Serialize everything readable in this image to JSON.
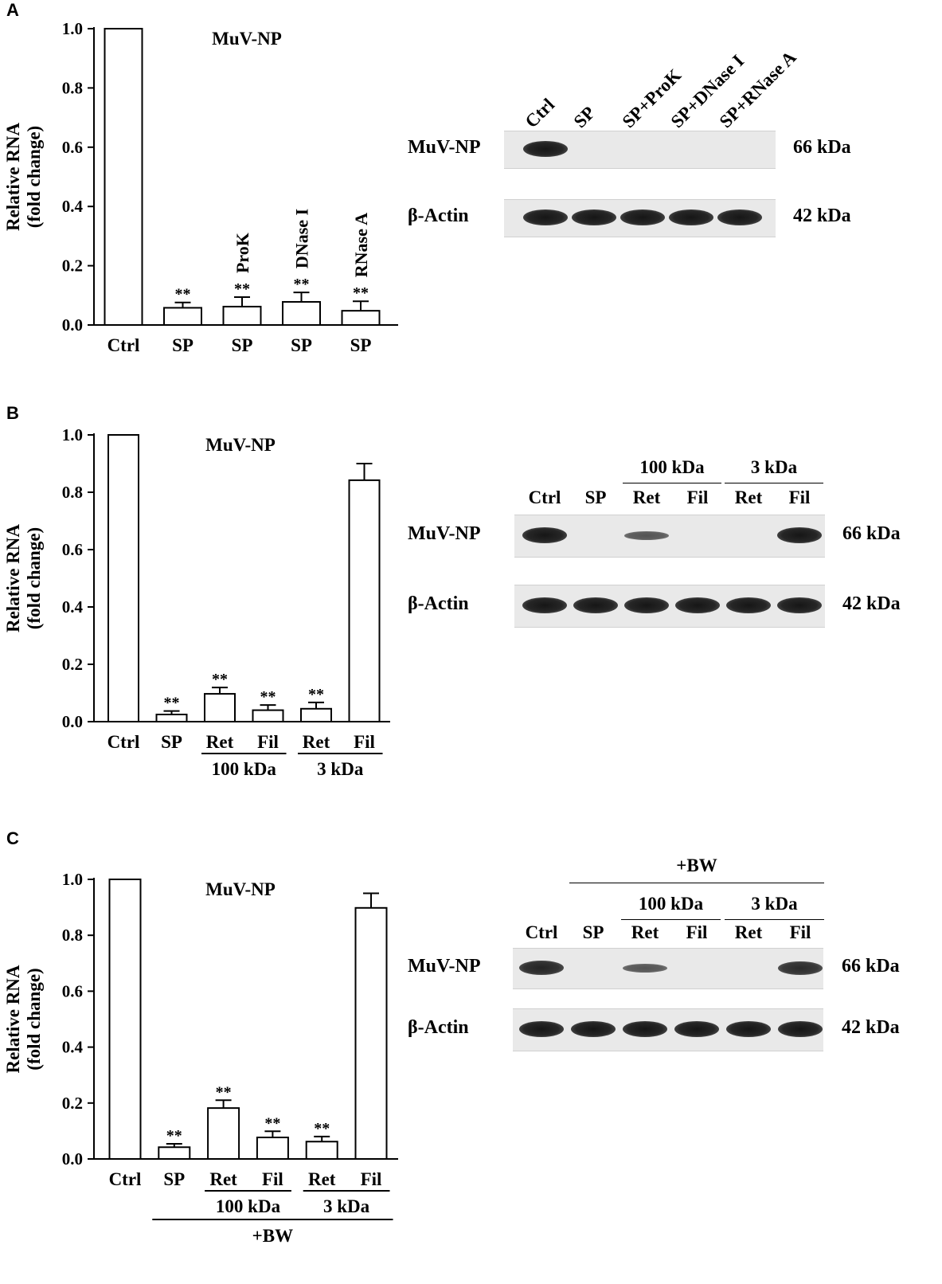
{
  "panels": [
    {
      "label": "A",
      "chart_data": {
        "type": "bar",
        "title": "MuV-NP",
        "ylabel_line1": "Relative RNA",
        "ylabel_line2": "(fold change)",
        "ylim": [
          0,
          1.0
        ],
        "yticks": [
          "0.0",
          "0.2",
          "0.4",
          "0.6",
          "0.8",
          "1.0"
        ],
        "categories": [
          "Ctrl",
          "SP",
          "SP",
          "SP",
          "SP"
        ],
        "bar_top_labels": [
          "",
          "",
          "ProK",
          "DNase I",
          "RNase A"
        ],
        "values": [
          1.0,
          0.058,
          0.062,
          0.078,
          0.048
        ],
        "errors": [
          0,
          0.018,
          0.032,
          0.032,
          0.032
        ],
        "significance": [
          "",
          "**",
          "**",
          "**",
          "**"
        ],
        "groups": []
      },
      "blot": {
        "lanes": [
          "Ctrl",
          "SP",
          "SP+ProK",
          "SP+DNase I",
          "SP+RNase A"
        ],
        "lanes_rotated": true,
        "supergroups": [],
        "rows": [
          {
            "name": "MuV-NP",
            "kda": "66 kDa",
            "intensity": [
              1,
              0,
              0,
              0,
              0
            ]
          },
          {
            "name": "β-Actin",
            "kda": "42 kDa",
            "intensity": [
              1,
              1,
              1,
              1,
              1
            ]
          }
        ]
      }
    },
    {
      "label": "B",
      "chart_data": {
        "type": "bar",
        "title": "MuV-NP",
        "ylabel_line1": "Relative RNA",
        "ylabel_line2": "(fold change)",
        "ylim": [
          0,
          1.0
        ],
        "yticks": [
          "0.0",
          "0.2",
          "0.4",
          "0.6",
          "0.8",
          "1.0"
        ],
        "categories": [
          "Ctrl",
          "SP",
          "Ret",
          "Fil",
          "Ret",
          "Fil"
        ],
        "bar_top_labels": [
          "",
          "",
          "",
          "",
          "",
          ""
        ],
        "values": [
          1.0,
          0.025,
          0.097,
          0.04,
          0.045,
          0.842
        ],
        "errors": [
          0,
          0.012,
          0.022,
          0.018,
          0.022,
          0.058
        ],
        "significance": [
          "",
          "**",
          "**",
          "**",
          "**",
          ""
        ],
        "groups": [
          {
            "label": "100 kDa",
            "from": 2,
            "to": 3
          },
          {
            "label": "3 kDa",
            "from": 4,
            "to": 5
          }
        ]
      },
      "blot": {
        "lanes": [
          "Ctrl",
          "SP",
          "Ret",
          "Fil",
          "Ret",
          "Fil"
        ],
        "lanes_rotated": false,
        "groups": [
          {
            "label": "100 kDa",
            "from": 2,
            "to": 3
          },
          {
            "label": "3 kDa",
            "from": 4,
            "to": 5
          }
        ],
        "supergroups": [],
        "rows": [
          {
            "name": "MuV-NP",
            "kda": "66 kDa",
            "intensity": [
              1,
              0,
              0.55,
              0,
              0,
              1
            ]
          },
          {
            "name": "β-Actin",
            "kda": "42 kDa",
            "intensity": [
              1,
              1,
              1,
              1,
              1,
              1
            ]
          }
        ]
      }
    },
    {
      "label": "C",
      "chart_data": {
        "type": "bar",
        "title": "MuV-NP",
        "ylabel_line1": "Relative RNA",
        "ylabel_line2": "(fold change)",
        "ylim": [
          0,
          1.0
        ],
        "yticks": [
          "0.0",
          "0.2",
          "0.4",
          "0.6",
          "0.8",
          "1.0"
        ],
        "categories": [
          "Ctrl",
          "SP",
          "Ret",
          "Fil",
          "Ret",
          "Fil"
        ],
        "bar_top_labels": [
          "",
          "",
          "",
          "",
          "",
          ""
        ],
        "values": [
          1.0,
          0.042,
          0.182,
          0.077,
          0.062,
          0.898
        ],
        "errors": [
          0,
          0.012,
          0.028,
          0.022,
          0.018,
          0.052
        ],
        "significance": [
          "",
          "**",
          "**",
          "**",
          "**",
          ""
        ],
        "groups": [
          {
            "label": "100 kDa",
            "from": 2,
            "to": 3
          },
          {
            "label": "3 kDa",
            "from": 4,
            "to": 5
          }
        ],
        "supergroup": {
          "label": "+BW",
          "from": 1,
          "to": 5
        }
      },
      "blot": {
        "lanes": [
          "Ctrl",
          "SP",
          "Ret",
          "Fil",
          "Ret",
          "Fil"
        ],
        "lanes_rotated": false,
        "groups": [
          {
            "label": "100 kDa",
            "from": 2,
            "to": 3
          },
          {
            "label": "3 kDa",
            "from": 4,
            "to": 5
          }
        ],
        "supergroups": [
          {
            "label": "+BW",
            "from": 1,
            "to": 5
          }
        ],
        "rows": [
          {
            "name": "MuV-NP",
            "kda": "66 kDa",
            "intensity": [
              0.9,
              0,
              0.55,
              0,
              0,
              0.85
            ]
          },
          {
            "name": "β-Actin",
            "kda": "42 kDa",
            "intensity": [
              1,
              1,
              1,
              1,
              1,
              1
            ]
          }
        ]
      }
    }
  ]
}
